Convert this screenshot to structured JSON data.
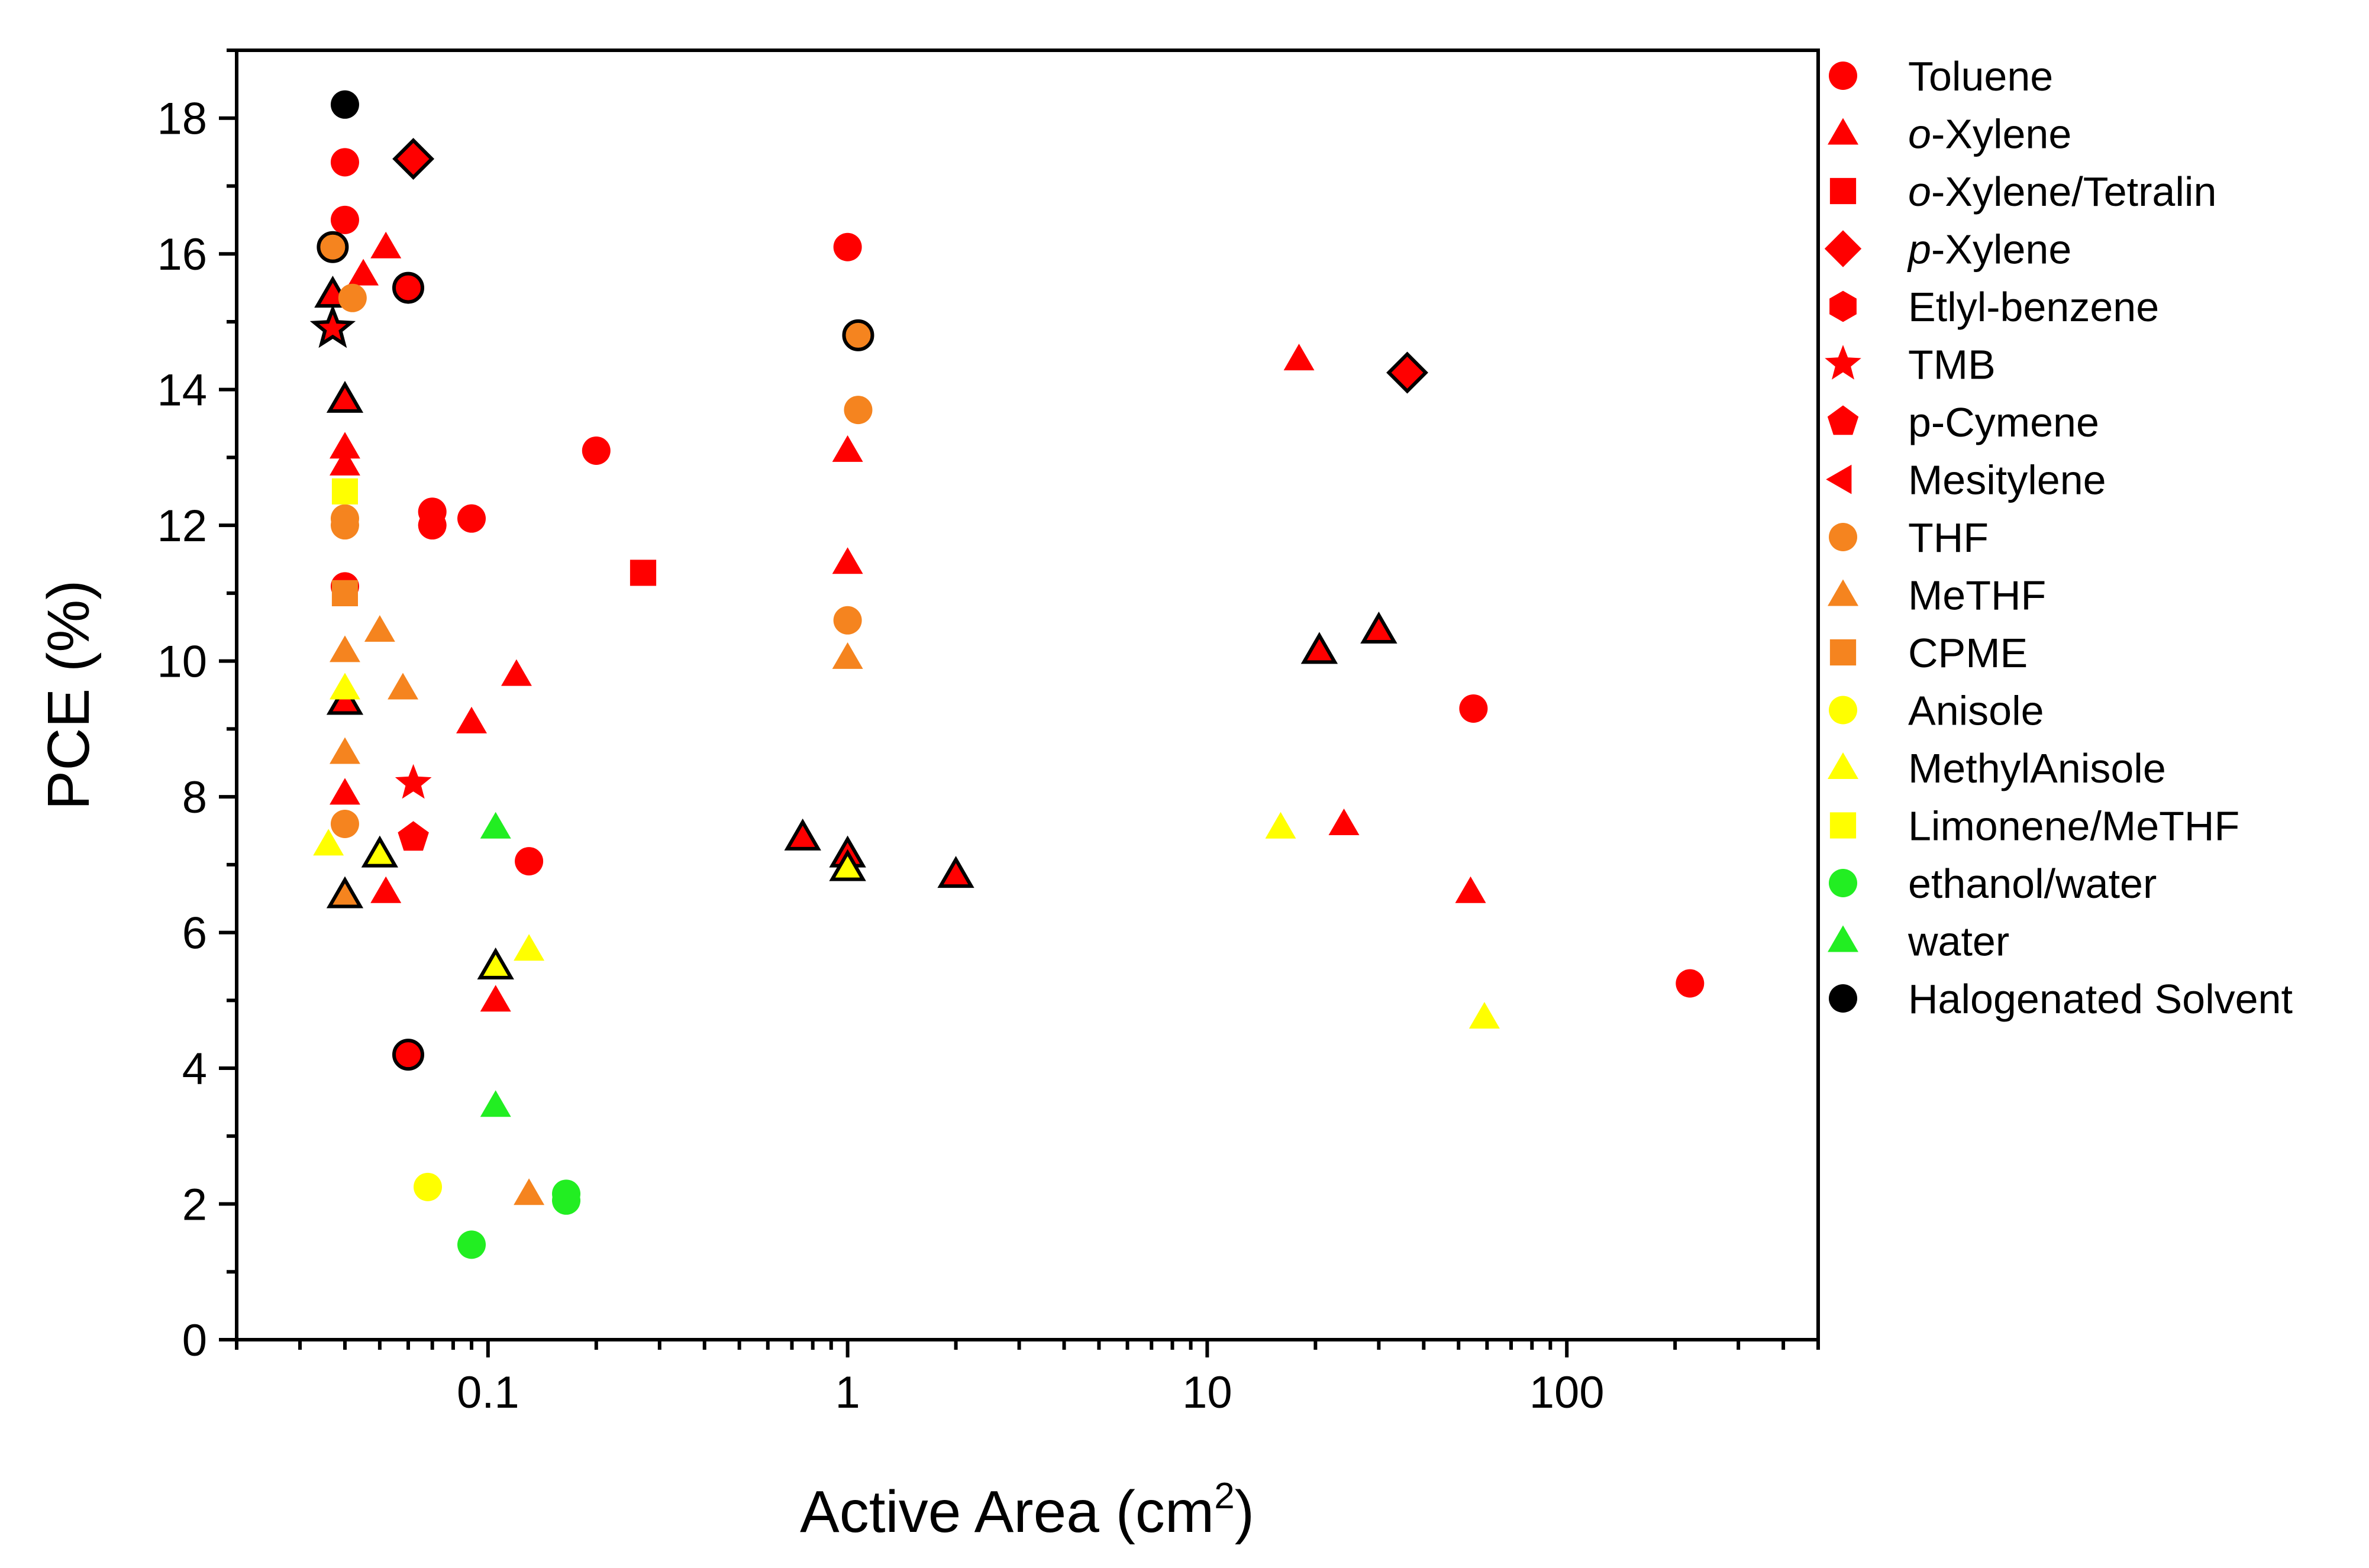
{
  "chart_data": {
    "type": "scatter",
    "title": "",
    "xlabel": "Active Area (cm",
    "xlabel_sup": "2",
    "xlabel_close": ")",
    "ylabel": "PCE (%)",
    "xscale": "log",
    "xlim": [
      0.02,
      500
    ],
    "ylim": [
      0,
      19
    ],
    "xticks": [
      0.1,
      1,
      10,
      100
    ],
    "xtick_labels": [
      "0.1",
      "1",
      "10",
      "100"
    ],
    "yticks": [
      0,
      2,
      4,
      6,
      8,
      10,
      12,
      14,
      16,
      18
    ],
    "ytick_labels": [
      "0",
      "2",
      "4",
      "6",
      "8",
      "10",
      "12",
      "14",
      "16",
      "18"
    ],
    "grid": false,
    "legend_position": "right",
    "series": [
      {
        "name": "Toluene",
        "name_prefix": "",
        "name_suffix": "",
        "marker": "circle",
        "color": "#ff0000",
        "points": [
          {
            "x": 0.04,
            "y": 17.35
          },
          {
            "x": 0.04,
            "y": 16.5
          },
          {
            "x": 0.06,
            "y": 15.5,
            "outlined": true
          },
          {
            "x": 0.04,
            "y": 11.1
          },
          {
            "x": 0.07,
            "y": 12.2
          },
          {
            "x": 0.07,
            "y": 12.0
          },
          {
            "x": 0.09,
            "y": 12.1
          },
          {
            "x": 0.2,
            "y": 13.1
          },
          {
            "x": 0.13,
            "y": 7.05
          },
          {
            "x": 0.06,
            "y": 4.2,
            "outlined": true
          },
          {
            "x": 1.0,
            "y": 16.1
          },
          {
            "x": 55,
            "y": 9.3
          },
          {
            "x": 220,
            "y": 5.25
          }
        ]
      },
      {
        "name": "o-Xylene",
        "name_prefix": "o",
        "name_suffix": "-Xylene",
        "marker": "triangle",
        "color": "#ff0000",
        "points": [
          {
            "x": 0.052,
            "y": 16.1
          },
          {
            "x": 0.045,
            "y": 15.7
          },
          {
            "x": 0.037,
            "y": 15.4,
            "outlined": true
          },
          {
            "x": 0.04,
            "y": 13.85,
            "outlined": true
          },
          {
            "x": 0.04,
            "y": 13.15
          },
          {
            "x": 0.04,
            "y": 12.9
          },
          {
            "x": 0.04,
            "y": 9.4,
            "outlined": true
          },
          {
            "x": 0.04,
            "y": 8.05
          },
          {
            "x": 0.052,
            "y": 6.6
          },
          {
            "x": 0.09,
            "y": 9.1
          },
          {
            "x": 0.12,
            "y": 9.8
          },
          {
            "x": 0.105,
            "y": 5.0
          },
          {
            "x": 1.0,
            "y": 13.1
          },
          {
            "x": 1.0,
            "y": 11.45
          },
          {
            "x": 0.75,
            "y": 7.4,
            "outlined": true
          },
          {
            "x": 1.0,
            "y": 7.15,
            "outlined": true
          },
          {
            "x": 2.0,
            "y": 6.85,
            "outlined": true
          },
          {
            "x": 18,
            "y": 14.45
          },
          {
            "x": 20.5,
            "y": 10.15,
            "outlined": true
          },
          {
            "x": 30,
            "y": 10.45,
            "outlined": true
          },
          {
            "x": 24,
            "y": 7.6
          },
          {
            "x": 54,
            "y": 6.6
          }
        ]
      },
      {
        "name": "o-Xylene/Tetralin",
        "name_prefix": "o",
        "name_suffix": "-Xylene/Tetralin",
        "marker": "square",
        "color": "#ff0000",
        "points": [
          {
            "x": 0.27,
            "y": 11.3
          }
        ]
      },
      {
        "name": "p-Xylene",
        "name_prefix": "p",
        "name_suffix": "-Xylene",
        "marker": "diamond",
        "color": "#ff0000",
        "points": [
          {
            "x": 0.062,
            "y": 17.4,
            "outlined": true
          },
          {
            "x": 36,
            "y": 14.25,
            "outlined": true
          }
        ]
      },
      {
        "name": "Etlyl-benzene",
        "name_prefix": "",
        "name_suffix": "",
        "marker": "hexagon",
        "color": "#ff0000",
        "points": []
      },
      {
        "name": "TMB",
        "name_prefix": "",
        "name_suffix": "",
        "marker": "star",
        "color": "#ff0000",
        "points": [
          {
            "x": 0.037,
            "y": 14.9,
            "outlined": true
          },
          {
            "x": 0.062,
            "y": 8.2
          }
        ]
      },
      {
        "name": "p-Cymene",
        "name_prefix": "",
        "name_suffix": "",
        "marker": "pentagon",
        "color": "#ff0000",
        "points": [
          {
            "x": 0.062,
            "y": 7.4
          }
        ]
      },
      {
        "name": "Mesitylene",
        "name_prefix": "",
        "name_suffix": "",
        "marker": "triangle-left",
        "color": "#ff0000",
        "points": []
      },
      {
        "name": "THF",
        "name_prefix": "",
        "name_suffix": "",
        "marker": "circle",
        "color": "#f5841f",
        "points": [
          {
            "x": 0.037,
            "y": 16.1,
            "outlined": true
          },
          {
            "x": 0.042,
            "y": 15.35
          },
          {
            "x": 0.04,
            "y": 12.1
          },
          {
            "x": 0.04,
            "y": 12.0
          },
          {
            "x": 0.04,
            "y": 7.6
          },
          {
            "x": 1.07,
            "y": 14.8,
            "outlined": true
          },
          {
            "x": 1.07,
            "y": 13.7
          },
          {
            "x": 1.0,
            "y": 10.6
          }
        ]
      },
      {
        "name": "MeTHF",
        "name_prefix": "",
        "name_suffix": "",
        "marker": "triangle",
        "color": "#f5841f",
        "points": [
          {
            "x": 0.05,
            "y": 10.45
          },
          {
            "x": 0.04,
            "y": 10.15
          },
          {
            "x": 0.058,
            "y": 9.6
          },
          {
            "x": 0.04,
            "y": 8.65
          },
          {
            "x": 0.04,
            "y": 6.55,
            "outlined": true
          },
          {
            "x": 0.13,
            "y": 2.15
          },
          {
            "x": 1.0,
            "y": 10.05
          }
        ]
      },
      {
        "name": "CPME",
        "name_prefix": "",
        "name_suffix": "",
        "marker": "square",
        "color": "#f5841f",
        "points": [
          {
            "x": 0.04,
            "y": 11.0
          }
        ]
      },
      {
        "name": "Anisole",
        "name_prefix": "",
        "name_suffix": "",
        "marker": "circle",
        "color": "#ffff00",
        "points": [
          {
            "x": 0.068,
            "y": 2.25
          }
        ]
      },
      {
        "name": "MethylAnisole",
        "name_prefix": "",
        "name_suffix": "",
        "marker": "triangle",
        "color": "#ffff00",
        "points": [
          {
            "x": 0.04,
            "y": 9.6
          },
          {
            "x": 0.036,
            "y": 7.3
          },
          {
            "x": 0.05,
            "y": 7.15,
            "outlined": true
          },
          {
            "x": 0.105,
            "y": 5.5,
            "outlined": true
          },
          {
            "x": 0.13,
            "y": 5.75
          },
          {
            "x": 1.0,
            "y": 6.95,
            "outlined": true
          },
          {
            "x": 16,
            "y": 7.55
          },
          {
            "x": 59,
            "y": 4.75
          }
        ]
      },
      {
        "name": "Limonene/MeTHF",
        "name_prefix": "",
        "name_suffix": "",
        "marker": "square",
        "color": "#ffff00",
        "points": [
          {
            "x": 0.04,
            "y": 12.5
          }
        ]
      },
      {
        "name": "ethanol/water",
        "name_prefix": "",
        "name_suffix": "",
        "marker": "circle",
        "color": "#22ee22",
        "points": [
          {
            "x": 0.165,
            "y": 2.15
          },
          {
            "x": 0.165,
            "y": 2.05
          },
          {
            "x": 0.09,
            "y": 1.4
          }
        ]
      },
      {
        "name": "water",
        "name_prefix": "",
        "name_suffix": "",
        "marker": "triangle",
        "color": "#22ee22",
        "points": [
          {
            "x": 0.105,
            "y": 7.55
          },
          {
            "x": 0.105,
            "y": 3.45
          }
        ]
      },
      {
        "name": "Halogenated Solvent",
        "name_prefix": "",
        "name_suffix": "",
        "marker": "circle",
        "color": "#000000",
        "points": [
          {
            "x": 0.04,
            "y": 18.2
          }
        ]
      }
    ]
  }
}
